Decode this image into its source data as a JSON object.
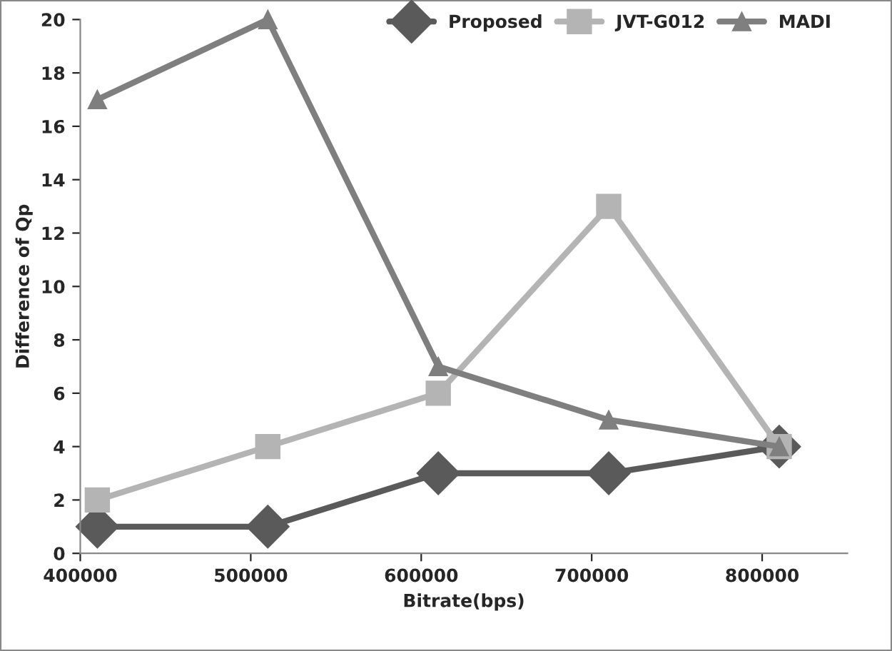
{
  "chart_data": {
    "type": "line",
    "xlabel": "Bitrate(bps)",
    "ylabel": "Difference of Qp",
    "x": [
      410000,
      510000,
      610000,
      710000,
      810000
    ],
    "series": [
      {
        "name": "Proposed",
        "color": "#5a5a5a",
        "marker": "diamond",
        "values": [
          1,
          1,
          3,
          3,
          4
        ]
      },
      {
        "name": "JVT-G012",
        "color": "#b4b4b4",
        "marker": "square",
        "values": [
          2,
          4,
          6,
          13,
          4
        ]
      },
      {
        "name": "MADI",
        "color": "#7f7f7f",
        "marker": "triangle",
        "values": [
          17,
          20,
          7,
          5,
          4
        ]
      }
    ],
    "xlim": [
      400000,
      850000
    ],
    "xticks": [
      400000,
      500000,
      600000,
      700000,
      800000
    ],
    "ylim": [
      0,
      20
    ],
    "yticks": [
      0,
      2,
      4,
      6,
      8,
      10,
      12,
      14,
      16,
      18,
      20
    ],
    "grid": false,
    "legend": "top right",
    "line_style": "solid"
  }
}
